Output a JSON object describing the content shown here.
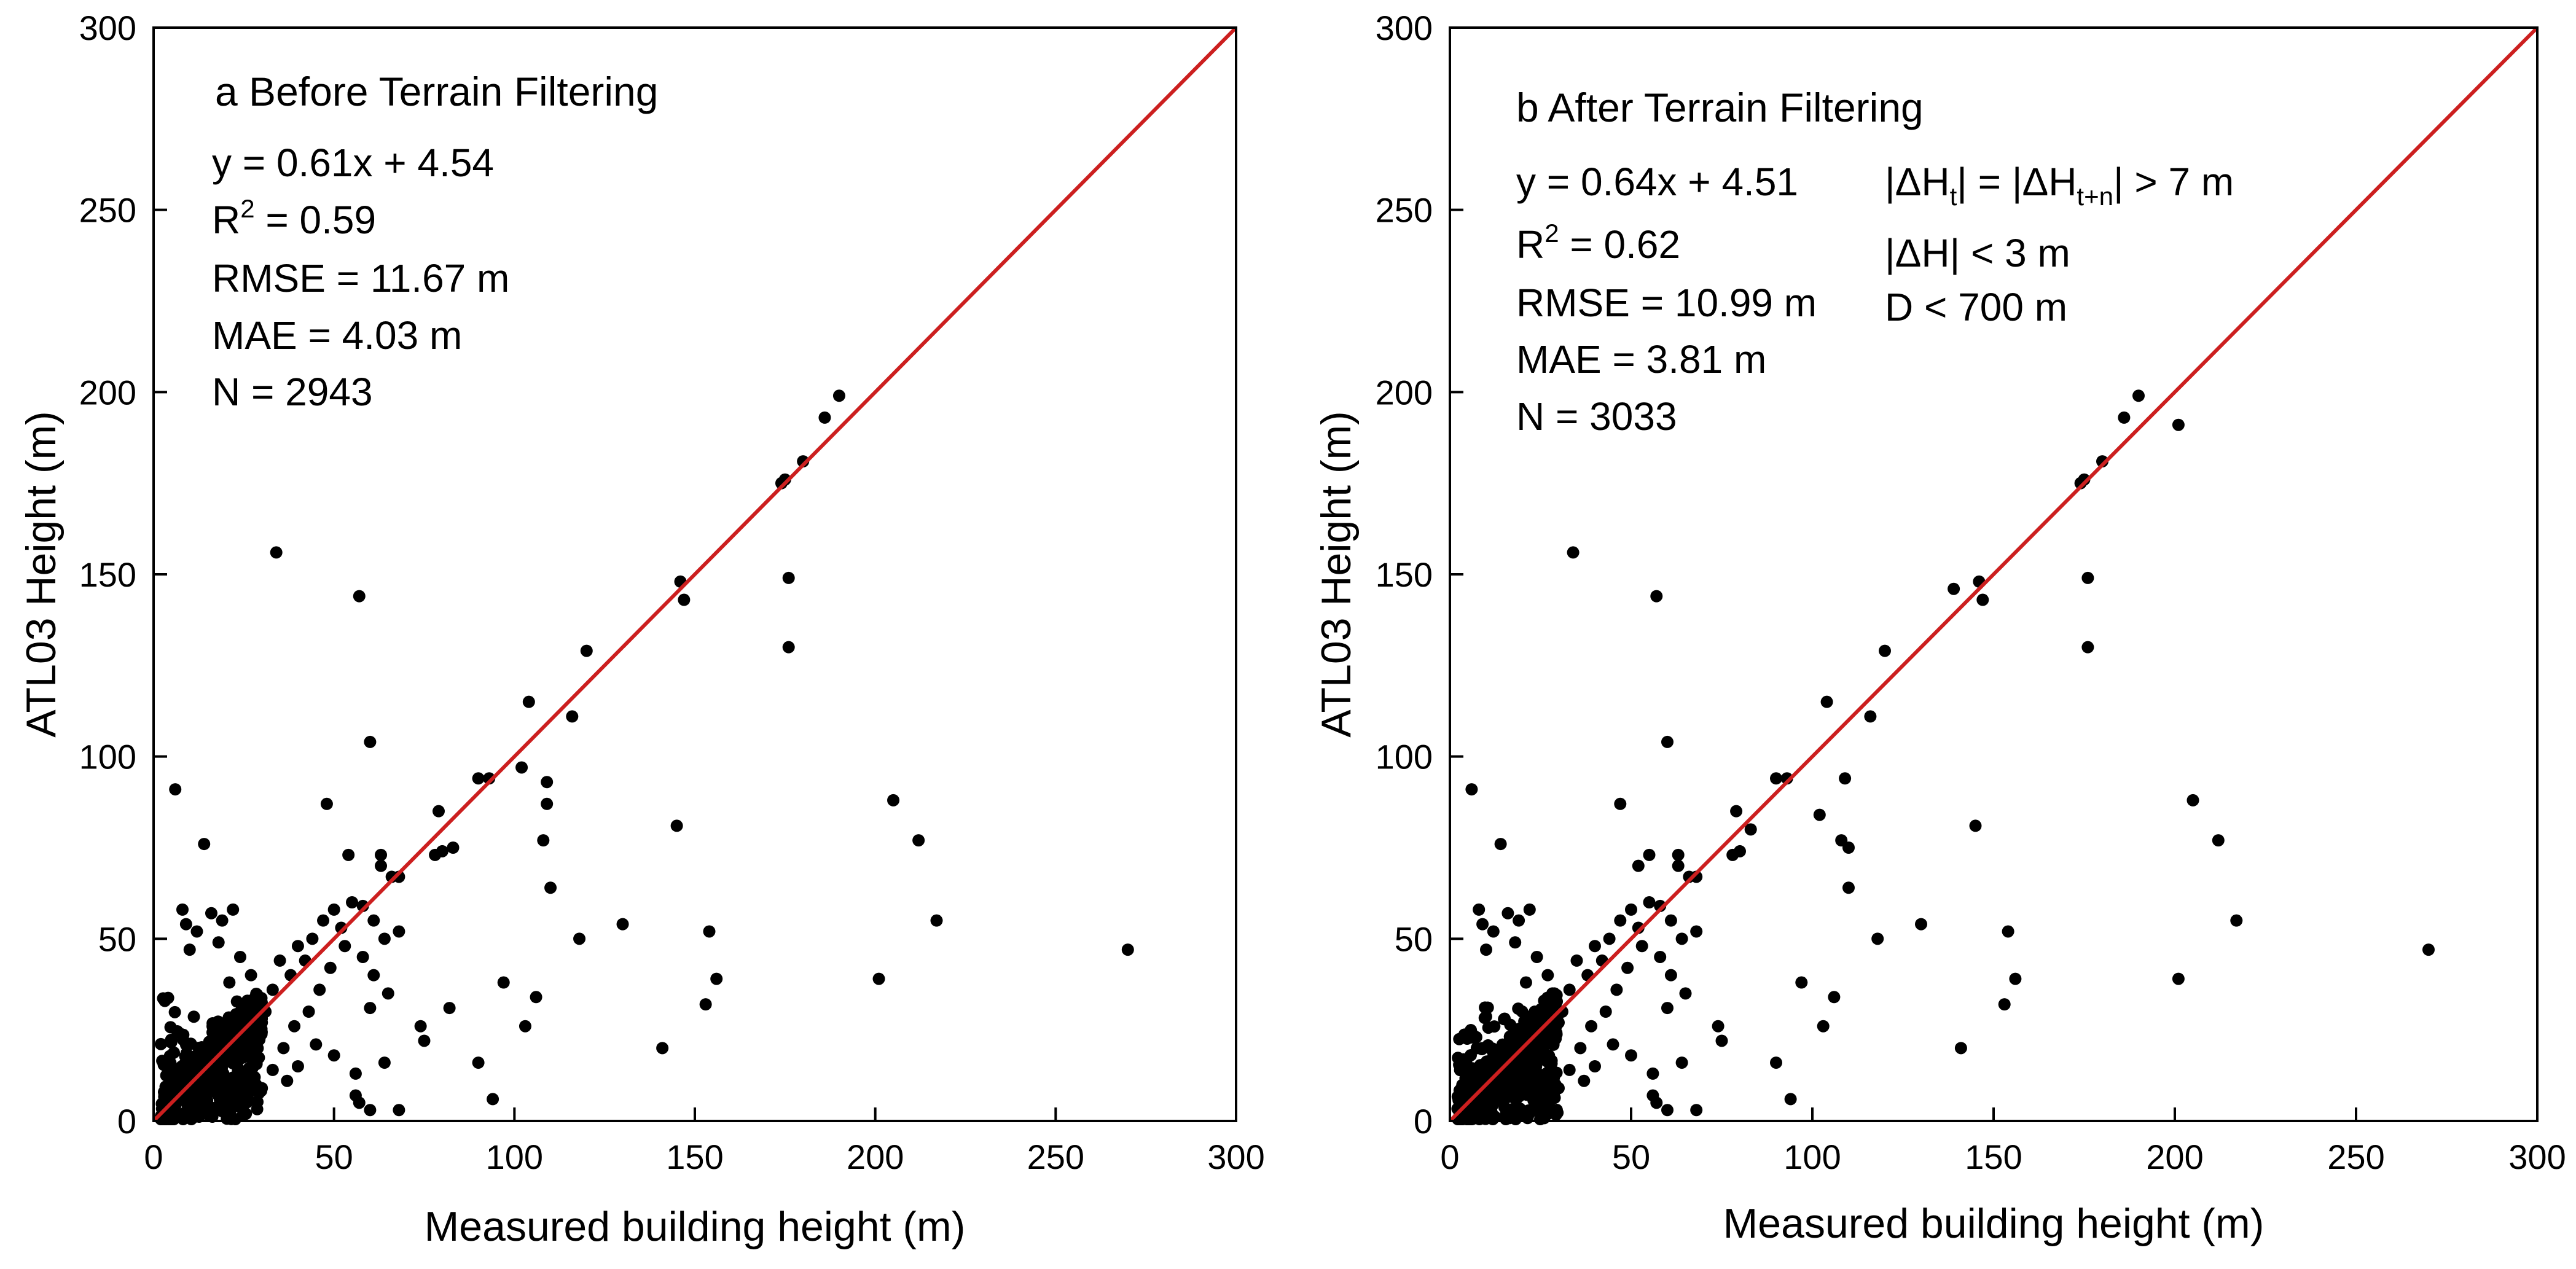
{
  "chart_data": [
    {
      "type": "scatter",
      "panel": "a",
      "title": "a Before Terrain Filtering",
      "xlabel": "Measured building height (m)",
      "ylabel": "ATL03 Height (m)",
      "xlim": [
        0,
        300
      ],
      "ylim": [
        0,
        300
      ],
      "xticks": [
        0,
        50,
        100,
        150,
        200,
        250,
        300
      ],
      "yticks": [
        0,
        50,
        100,
        150,
        200,
        250,
        300
      ],
      "reference_line": {
        "name": "1:1 line",
        "x": [
          0,
          300
        ],
        "y": [
          0,
          300
        ],
        "color": "#cc1f1f"
      },
      "stats": {
        "equation": "y = 0.61x + 4.54",
        "r2_prefix": "R",
        "r2_sup": "2",
        "r2_value": " = 0.59",
        "rmse": "RMSE = 11.67 m",
        "mae": "MAE = 4.03 m",
        "n": "N = 2943"
      },
      "marker_color": "#000000",
      "points_note": "outlying points read from the figure; dense cluster below 30 m summarized",
      "points": [
        [
          6,
          91
        ],
        [
          14,
          76
        ],
        [
          34,
          156
        ],
        [
          57,
          144
        ],
        [
          60,
          104
        ],
        [
          48,
          87
        ],
        [
          54,
          73
        ],
        [
          63,
          73
        ],
        [
          63,
          70
        ],
        [
          66,
          67
        ],
        [
          68,
          67
        ],
        [
          58,
          59
        ],
        [
          47,
          55
        ],
        [
          40,
          48
        ],
        [
          30,
          27
        ],
        [
          36,
          20
        ],
        [
          45,
          21
        ],
        [
          50,
          18
        ],
        [
          56,
          13
        ],
        [
          56,
          7
        ],
        [
          57,
          5
        ],
        [
          60,
          3
        ],
        [
          64,
          16
        ],
        [
          68,
          3
        ],
        [
          74,
          26
        ],
        [
          75,
          22
        ],
        [
          78,
          73
        ],
        [
          80,
          74
        ],
        [
          83,
          75
        ],
        [
          79,
          85
        ],
        [
          82,
          31
        ],
        [
          90,
          94
        ],
        [
          90,
          16
        ],
        [
          93,
          94
        ],
        [
          94,
          6
        ],
        [
          97,
          38
        ],
        [
          102,
          97
        ],
        [
          103,
          26
        ],
        [
          104,
          115
        ],
        [
          106,
          34
        ],
        [
          108,
          77
        ],
        [
          109,
          87
        ],
        [
          109,
          93
        ],
        [
          110,
          64
        ],
        [
          116,
          111
        ],
        [
          118,
          50
        ],
        [
          120,
          129
        ],
        [
          130,
          54
        ],
        [
          141,
          20
        ],
        [
          145,
          81
        ],
        [
          146,
          148
        ],
        [
          147,
          143
        ],
        [
          153,
          32
        ],
        [
          154,
          52
        ],
        [
          156,
          39
        ],
        [
          174,
          175
        ],
        [
          175,
          176
        ],
        [
          176,
          149
        ],
        [
          176,
          130
        ],
        [
          180,
          181
        ],
        [
          186,
          193
        ],
        [
          190,
          199
        ],
        [
          201,
          39
        ],
        [
          205,
          88
        ],
        [
          212,
          77
        ],
        [
          217,
          55
        ],
        [
          270,
          47
        ],
        [
          8,
          58
        ],
        [
          9,
          54
        ],
        [
          12,
          52
        ],
        [
          10,
          47
        ],
        [
          16,
          57
        ],
        [
          19,
          55
        ],
        [
          22,
          58
        ],
        [
          18,
          49
        ],
        [
          24,
          45
        ],
        [
          27,
          40
        ],
        [
          21,
          38
        ],
        [
          26,
          33
        ],
        [
          29,
          32
        ],
        [
          31,
          30
        ],
        [
          33,
          36
        ],
        [
          35,
          44
        ],
        [
          38,
          40
        ],
        [
          42,
          44
        ],
        [
          44,
          50
        ],
        [
          50,
          58
        ],
        [
          52,
          53
        ],
        [
          55,
          60
        ],
        [
          53,
          48
        ],
        [
          49,
          42
        ],
        [
          46,
          36
        ],
        [
          43,
          30
        ],
        [
          39,
          26
        ],
        [
          33,
          14
        ],
        [
          28,
          12
        ],
        [
          25,
          8
        ],
        [
          30,
          9
        ],
        [
          37,
          11
        ],
        [
          40,
          15
        ],
        [
          61,
          55
        ],
        [
          64,
          50
        ],
        [
          58,
          45
        ],
        [
          61,
          40
        ],
        [
          65,
          35
        ],
        [
          60,
          31
        ],
        [
          68,
          52
        ]
      ],
      "cluster": {
        "x_range": [
          2,
          30
        ],
        "y_range": [
          0,
          35
        ],
        "count": 520,
        "seed": 11
      }
    },
    {
      "type": "scatter",
      "panel": "b",
      "title": "b After Terrain Filtering",
      "xlabel": "Measured building height (m)",
      "ylabel": "ATL03 Height (m)",
      "xlim": [
        0,
        300
      ],
      "ylim": [
        0,
        300
      ],
      "xticks": [
        0,
        50,
        100,
        150,
        200,
        250,
        300
      ],
      "yticks": [
        0,
        50,
        100,
        150,
        200,
        250,
        300
      ],
      "reference_line": {
        "name": "1:1 line",
        "x": [
          0,
          300
        ],
        "y": [
          0,
          300
        ],
        "color": "#cc1f1f"
      },
      "stats": {
        "equation": "y = 0.64x + 4.51",
        "r2_prefix": "R",
        "r2_sup": "2",
        "r2_value": " = 0.62",
        "rmse": "RMSE = 10.99 m",
        "mae": "MAE = 3.81 m",
        "n": "N = 3033"
      },
      "criteria": {
        "line1_a": "|ΔH",
        "line1_sub1": "t",
        "line1_b": "| = |ΔH",
        "line1_sub2": "t+n",
        "line1_c": "| > 7 m",
        "line2": "|ΔH| < 3 m",
        "line3": "D < 700 m"
      },
      "marker_color": "#000000",
      "points_note": "outlying points read from the figure; dense cluster below 30 m summarized",
      "points": [
        [
          6,
          91
        ],
        [
          14,
          76
        ],
        [
          34,
          156
        ],
        [
          57,
          144
        ],
        [
          60,
          104
        ],
        [
          47,
          87
        ],
        [
          52,
          70
        ],
        [
          55,
          73
        ],
        [
          63,
          73
        ],
        [
          63,
          70
        ],
        [
          66,
          67
        ],
        [
          68,
          67
        ],
        [
          58,
          59
        ],
        [
          47,
          55
        ],
        [
          40,
          48
        ],
        [
          30,
          27
        ],
        [
          36,
          20
        ],
        [
          45,
          21
        ],
        [
          50,
          18
        ],
        [
          56,
          13
        ],
        [
          56,
          7
        ],
        [
          57,
          5
        ],
        [
          60,
          3
        ],
        [
          64,
          16
        ],
        [
          68,
          3
        ],
        [
          74,
          26
        ],
        [
          75,
          22
        ],
        [
          78,
          73
        ],
        [
          80,
          74
        ],
        [
          83,
          80
        ],
        [
          79,
          85
        ],
        [
          90,
          94
        ],
        [
          90,
          16
        ],
        [
          93,
          94
        ],
        [
          94,
          6
        ],
        [
          97,
          38
        ],
        [
          102,
          84
        ],
        [
          103,
          26
        ],
        [
          104,
          115
        ],
        [
          106,
          34
        ],
        [
          108,
          77
        ],
        [
          109,
          94
        ],
        [
          110,
          75
        ],
        [
          110,
          64
        ],
        [
          116,
          111
        ],
        [
          118,
          50
        ],
        [
          120,
          129
        ],
        [
          130,
          54
        ],
        [
          139,
          146
        ],
        [
          141,
          20
        ],
        [
          145,
          81
        ],
        [
          146,
          148
        ],
        [
          147,
          143
        ],
        [
          153,
          32
        ],
        [
          154,
          52
        ],
        [
          156,
          39
        ],
        [
          174,
          175
        ],
        [
          175,
          176
        ],
        [
          176,
          149
        ],
        [
          176,
          130
        ],
        [
          180,
          181
        ],
        [
          186,
          193
        ],
        [
          190,
          199
        ],
        [
          201,
          191
        ],
        [
          201,
          39
        ],
        [
          205,
          88
        ],
        [
          212,
          77
        ],
        [
          217,
          55
        ],
        [
          270,
          47
        ],
        [
          8,
          58
        ],
        [
          9,
          54
        ],
        [
          12,
          52
        ],
        [
          10,
          47
        ],
        [
          16,
          57
        ],
        [
          19,
          55
        ],
        [
          22,
          58
        ],
        [
          18,
          49
        ],
        [
          24,
          45
        ],
        [
          27,
          40
        ],
        [
          21,
          38
        ],
        [
          26,
          33
        ],
        [
          29,
          32
        ],
        [
          31,
          30
        ],
        [
          33,
          36
        ],
        [
          35,
          44
        ],
        [
          38,
          40
        ],
        [
          42,
          44
        ],
        [
          44,
          50
        ],
        [
          50,
          58
        ],
        [
          52,
          53
        ],
        [
          55,
          60
        ],
        [
          53,
          48
        ],
        [
          49,
          42
        ],
        [
          46,
          36
        ],
        [
          43,
          30
        ],
        [
          39,
          26
        ],
        [
          33,
          14
        ],
        [
          28,
          12
        ],
        [
          25,
          8
        ],
        [
          30,
          9
        ],
        [
          37,
          11
        ],
        [
          40,
          15
        ],
        [
          61,
          55
        ],
        [
          64,
          50
        ],
        [
          58,
          45
        ],
        [
          61,
          40
        ],
        [
          65,
          35
        ],
        [
          60,
          31
        ],
        [
          68,
          52
        ]
      ],
      "cluster": {
        "x_range": [
          2,
          30
        ],
        "y_range": [
          0,
          35
        ],
        "count": 560,
        "seed": 29
      }
    }
  ]
}
